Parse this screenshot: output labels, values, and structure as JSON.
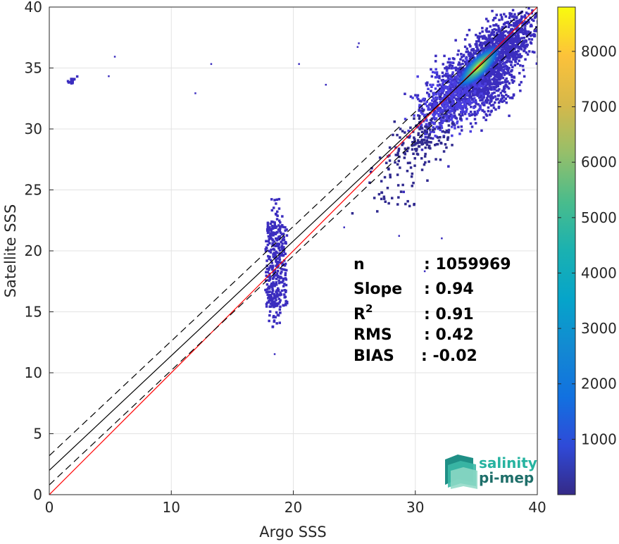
{
  "chart_data": {
    "type": "heatmap",
    "xlabel": "Argo SSS",
    "ylabel": "Satellite SSS",
    "xlim": [
      0,
      40
    ],
    "ylim": [
      0,
      40
    ],
    "x_ticks": [
      "0",
      "10",
      "20",
      "30",
      "40"
    ],
    "y_ticks": [
      "0",
      "5",
      "10",
      "15",
      "20",
      "25",
      "30",
      "35",
      "40"
    ],
    "grid": true,
    "colorbar": {
      "range": [
        0,
        8800
      ],
      "ticks": [
        "1000",
        "2000",
        "3000",
        "4000",
        "5000",
        "6000",
        "7000",
        "8000"
      ],
      "colormap": "parula"
    },
    "density_clusters": [
      {
        "x": 35.3,
        "y": 35.3,
        "density": 8700
      },
      {
        "x": 34.5,
        "y": 34.3,
        "density": 5500
      },
      {
        "x": 36.2,
        "y": 36.0,
        "density": 3500
      },
      {
        "x": 33.0,
        "y": 32.8,
        "density": 1200
      },
      {
        "x": 18.5,
        "y": 18.5,
        "density": 300
      },
      {
        "x": 1.6,
        "y": 34.0,
        "density": 50
      }
    ],
    "lines": [
      {
        "name": "one-to-one",
        "style": "solid",
        "color": "#ff0000",
        "intercept": 0,
        "slope": 1
      },
      {
        "name": "regression",
        "style": "solid",
        "color": "#000000",
        "intercept": 2.0,
        "slope": 0.94
      },
      {
        "name": "regression-upper",
        "style": "dashed",
        "color": "#000000",
        "intercept": 3.2,
        "slope": 0.94
      },
      {
        "name": "regression-lower",
        "style": "dashed",
        "color": "#000000",
        "intercept": 0.8,
        "slope": 0.94
      }
    ],
    "stats": [
      {
        "label": "n",
        "value": ": 1059969"
      },
      {
        "label": "Slope",
        "value": ": 0.94"
      },
      {
        "label": "R",
        "sup": "2",
        "value": ": 0.91"
      },
      {
        "label": "RMS",
        "value": ": 0.42"
      },
      {
        "label": "BIAS",
        "value": ": -0.02"
      }
    ]
  },
  "logo": {
    "line1": "salinity",
    "line2": "pi-mep",
    "color1": "#26b3a0",
    "color2": "#1f6f6a"
  }
}
